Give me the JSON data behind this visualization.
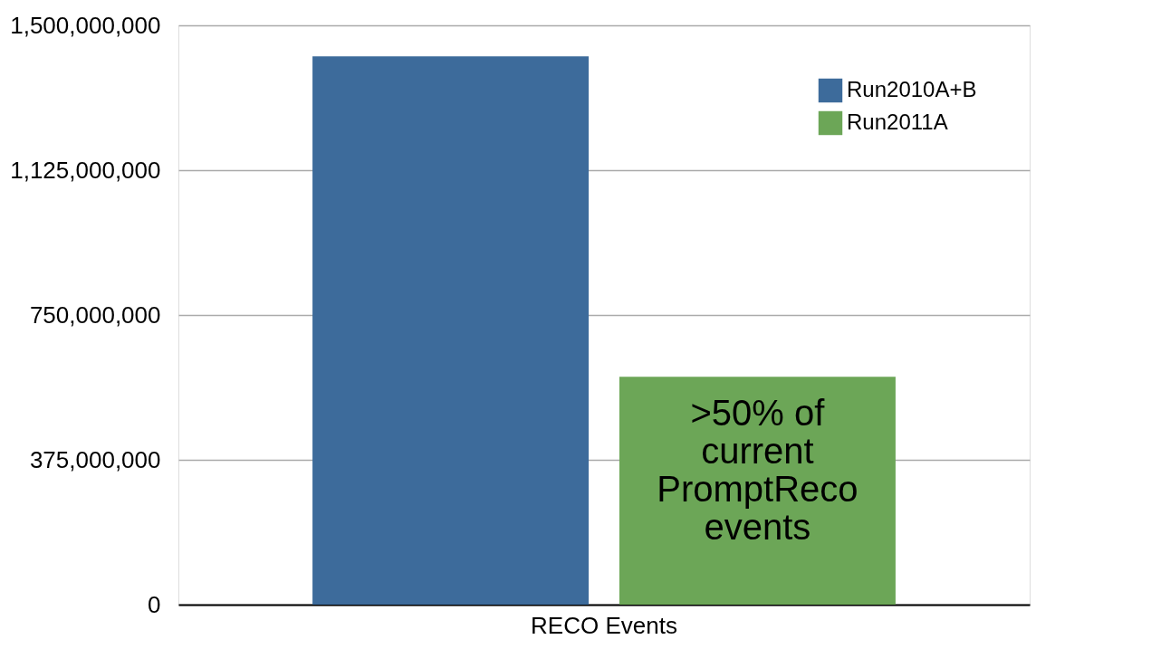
{
  "chart_data": {
    "type": "bar",
    "categories": [
      "RECO Events"
    ],
    "series": [
      {
        "name": "Run2010A+B",
        "color": "#3d6b9b",
        "values": [
          1420000000
        ]
      },
      {
        "name": "Run2011A",
        "color": "#6ca657",
        "values": [
          590000000
        ]
      }
    ],
    "ylim": [
      0,
      1500000000
    ],
    "yticks": [
      0,
      {
        "value": 375000000,
        "label": "375,000,000"
      },
      {
        "value": 750000000,
        "label": "750,000,000"
      },
      {
        "value": 1125000000,
        "label": "1,125,000,000"
      },
      {
        "value": 1500000000,
        "label": "1,500,000,000"
      }
    ],
    "grid": "y",
    "legend": "top right",
    "annotations": [
      ">50% of\ncurrent\nPromptReco\nevents"
    ]
  }
}
